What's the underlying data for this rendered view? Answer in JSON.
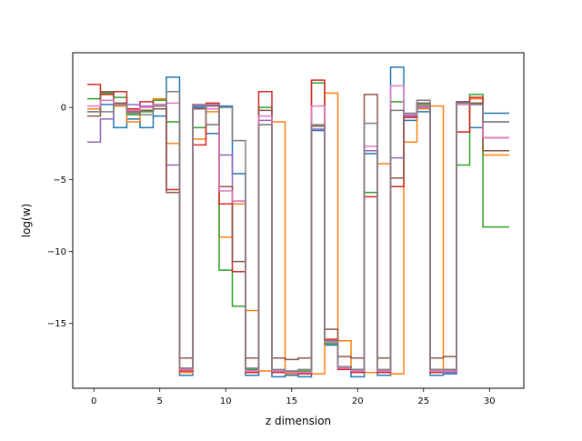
{
  "chart_data": {
    "type": "line",
    "drawstyle": "steps-mid",
    "xlabel": "z dimension",
    "ylabel": "log(w)",
    "xlim": [
      -1.6,
      32.6
    ],
    "ylim": [
      -19.5,
      3.8
    ],
    "xticks": [
      0,
      5,
      10,
      15,
      20,
      25,
      30
    ],
    "yticks": [
      0,
      -5,
      -10,
      -15
    ],
    "ytick_labels": [
      "0",
      "−5",
      "−10",
      "−15"
    ],
    "grid": false,
    "legend": "none",
    "x": [
      0,
      1,
      2,
      3,
      4,
      5,
      6,
      7,
      8,
      9,
      10,
      11,
      12,
      13,
      14,
      15,
      16,
      17,
      18,
      19,
      20,
      21,
      22,
      23,
      24,
      25,
      26,
      27,
      28,
      29,
      30,
      31
    ],
    "series": [
      {
        "color": "#1f77b4",
        "values": [
          -0.3,
          0.2,
          -1.4,
          -0.8,
          -1.4,
          -0.6,
          2.1,
          -18.6,
          0.0,
          -1.8,
          0.1,
          -4.6,
          -18.6,
          -1.2,
          -18.7,
          -18.6,
          -18.7,
          -1.6,
          -16.5,
          -18.1,
          -18.7,
          -3.2,
          -18.6,
          2.8,
          -0.9,
          -0.3,
          -18.6,
          -18.5,
          0.3,
          -1.4,
          -0.4,
          -0.4
        ]
      },
      {
        "color": "#ff7f0e",
        "values": [
          -0.1,
          0.9,
          0.1,
          -1.0,
          -0.2,
          0.6,
          -2.5,
          -18.4,
          -2.2,
          -0.3,
          -9.0,
          -6.7,
          -14.1,
          -18.3,
          -1.0,
          -18.5,
          -18.4,
          -18.5,
          1.0,
          -16.2,
          -18.3,
          -18.4,
          -3.9,
          -18.5,
          -2.4,
          -0.1,
          0.1,
          -18.3,
          -1.7,
          0.6,
          -3.3,
          -3.3
        ]
      },
      {
        "color": "#2ca02c",
        "values": [
          0.6,
          1.0,
          0.7,
          -0.5,
          -0.3,
          0.5,
          -1.0,
          -18.1,
          -1.4,
          -1.2,
          -11.3,
          -13.8,
          -18.2,
          0.0,
          -18.3,
          -18.4,
          -18.3,
          1.7,
          -16.4,
          -18.0,
          -18.2,
          -5.9,
          -18.3,
          0.4,
          -0.7,
          0.2,
          -18.2,
          -18.2,
          -4.0,
          0.9,
          -8.3,
          -8.3
        ]
      },
      {
        "color": "#d62728",
        "values": [
          1.6,
          0.9,
          1.1,
          -0.1,
          0.4,
          0.2,
          -5.7,
          -18.3,
          -2.6,
          0.3,
          -6.7,
          -11.4,
          -18.4,
          1.1,
          -18.4,
          -18.4,
          -18.5,
          1.9,
          -16.1,
          -18.2,
          -18.4,
          -6.2,
          -18.4,
          -5.5,
          -0.7,
          0.1,
          -18.4,
          -18.3,
          -1.7,
          0.7,
          -2.1,
          -2.1
        ]
      },
      {
        "color": "#9467bd",
        "values": [
          -2.4,
          -0.8,
          0.3,
          0.2,
          0.1,
          0.1,
          -4.0,
          -18.2,
          0.1,
          0.2,
          -3.3,
          -6.5,
          -18.3,
          -0.9,
          -18.3,
          -18.3,
          -18.4,
          -1.5,
          -16.3,
          -18.1,
          -18.3,
          -3.0,
          -18.3,
          -3.5,
          -0.6,
          0.0,
          -18.3,
          -18.4,
          0.4,
          0.3,
          -1.0,
          -1.0
        ]
      },
      {
        "color": "#8c564b",
        "values": [
          -0.6,
          1.1,
          0.3,
          -0.3,
          -0.2,
          -0.1,
          -5.9,
          -17.4,
          -0.1,
          0.1,
          -5.5,
          -10.7,
          -17.4,
          -0.2,
          -17.4,
          -17.5,
          -17.4,
          -1.3,
          -15.4,
          -17.3,
          -17.4,
          0.9,
          -17.4,
          -4.9,
          -0.5,
          0.3,
          -17.4,
          -17.3,
          0.4,
          0.3,
          -3.0,
          -3.0
        ]
      },
      {
        "color": "#e377c2",
        "values": [
          0.1,
          0.5,
          0.2,
          -0.2,
          0.0,
          0.2,
          0.3,
          -18.2,
          0.2,
          -0.1,
          -5.8,
          -6.5,
          -18.3,
          -0.6,
          -18.3,
          -18.4,
          -18.4,
          0.1,
          -16.3,
          -18.1,
          -18.3,
          -2.7,
          -18.3,
          1.5,
          -0.5,
          0.1,
          -18.3,
          -18.3,
          0.2,
          0.2,
          -2.1,
          -2.1
        ]
      },
      {
        "color": "#7f7f7f",
        "values": [
          -0.3,
          -0.3,
          0.2,
          -0.4,
          -0.5,
          0.1,
          1.1,
          -18.1,
          0.2,
          -1.2,
          0.0,
          -2.3,
          -18.1,
          -1.2,
          -18.2,
          -18.3,
          -18.2,
          -1.2,
          -16.2,
          -18.0,
          -18.2,
          -1.1,
          -18.2,
          -0.2,
          -0.4,
          0.5,
          -18.2,
          -18.2,
          0.3,
          0.2,
          -1.0,
          -1.0
        ]
      }
    ]
  }
}
